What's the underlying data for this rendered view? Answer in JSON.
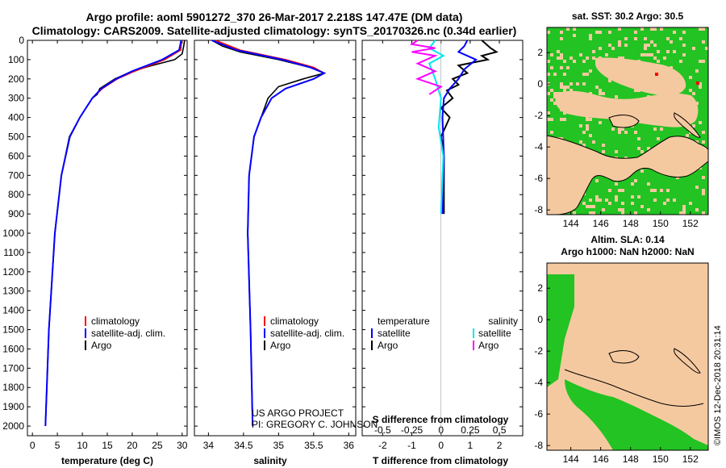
{
  "header": {
    "line1": "Argo profile: aoml 5901272_370 26-Mar-2017 2.218S 147.47E (DM data)",
    "line2": "Climatology: CARS2009. Satellite-adjusted climatology: synTS_20170326.nc (0.34d earlier)"
  },
  "map_sst": {
    "title": "sat. SST: 30.2 Argo: 30.5",
    "xticks": [
      "144",
      "146",
      "148",
      "150",
      "152"
    ],
    "yticks": [
      "2",
      "0",
      "-2",
      "-4",
      "-6",
      "-8"
    ]
  },
  "map_sla": {
    "title1": "Altim. SLA: 0.14",
    "title2": "Argo h1000: NaN h2000: NaN",
    "xticks": [
      "144",
      "146",
      "148",
      "150",
      "152"
    ],
    "yticks": [
      "2",
      "0",
      "-2",
      "-4",
      "-6",
      "-8"
    ]
  },
  "credits": {
    "project": "US ARGO PROJECT",
    "pi": "PI: GREGORY C. JOHNSON",
    "stamp": "©IMOS 12-Dec-2018 20:31:14"
  },
  "colors": {
    "climatology": "#ff0000",
    "satellite": "#0000ff",
    "argo": "#000000",
    "sat_salinity": "#00e5ee",
    "argo_salinity": "#ff00ff",
    "land": "#f5c9a0",
    "ocean_green": "#22c322"
  },
  "chart_data": [
    {
      "type": "line",
      "title": "",
      "xlabel": "temperature (deg C)",
      "ylabel": "",
      "xlim": [
        -1,
        31
      ],
      "ylim": [
        2050,
        0
      ],
      "xticks": [
        "0",
        "5",
        "10",
        "15",
        "20",
        "25",
        "30"
      ],
      "yticks": [
        "0",
        "100",
        "200",
        "300",
        "400",
        "500",
        "600",
        "700",
        "800",
        "900",
        "1000",
        "1100",
        "1200",
        "1300",
        "1400",
        "1500",
        "1600",
        "1700",
        "1800",
        "1900",
        "2000"
      ],
      "legend": [
        "climatology",
        "satellite-adj. clim.",
        "Argo"
      ],
      "series": [
        {
          "name": "climatology",
          "depth": [
            0,
            50,
            100,
            130,
            160,
            200,
            250,
            300,
            400,
            500,
            700,
            1000,
            1500,
            2000
          ],
          "values": [
            29.9,
            29.7,
            26.5,
            23.5,
            20.5,
            17.0,
            14.0,
            12.0,
            9.5,
            7.5,
            5.8,
            4.5,
            3.3,
            2.6
          ]
        },
        {
          "name": "satellite-adj. clim.",
          "depth": [
            0,
            50,
            100,
            130,
            160,
            200,
            250,
            300,
            400,
            500,
            700,
            1000,
            1500,
            2000
          ],
          "values": [
            29.8,
            29.4,
            26.0,
            23.0,
            20.0,
            16.8,
            13.8,
            12.0,
            9.5,
            7.5,
            5.8,
            4.5,
            3.3,
            2.6
          ]
        },
        {
          "name": "Argo",
          "depth": [
            0,
            30,
            70,
            100,
            130,
            160,
            200,
            250,
            280,
            300,
            400,
            500,
            700,
            1000,
            1500,
            2000
          ],
          "values": [
            30.5,
            30.3,
            30.0,
            28.5,
            24.0,
            20.0,
            16.5,
            13.5,
            13.0,
            12.0,
            9.5,
            7.4,
            5.8,
            4.5,
            3.3,
            2.6
          ]
        }
      ]
    },
    {
      "type": "line",
      "title": "",
      "xlabel": "salinity",
      "ylabel": "",
      "xlim": [
        33.8,
        36.1
      ],
      "ylim": [
        2050,
        0
      ],
      "xticks": [
        "34",
        "34.5",
        "35",
        "35.5",
        "36"
      ],
      "legend": [
        "climatology",
        "satellite-adj. clim.",
        "Argo"
      ],
      "series": [
        {
          "name": "climatology",
          "depth": [
            0,
            50,
            100,
            140,
            170,
            200,
            250,
            300,
            400,
            500,
            700,
            1000,
            1500,
            2000
          ],
          "values": [
            34.1,
            34.45,
            35.1,
            35.5,
            35.65,
            35.5,
            35.1,
            34.9,
            34.75,
            34.65,
            34.58,
            34.56,
            34.6,
            34.63
          ]
        },
        {
          "name": "satellite-adj. clim.",
          "depth": [
            0,
            50,
            100,
            140,
            170,
            200,
            250,
            300,
            400,
            500,
            700,
            1000,
            1500,
            2000
          ],
          "values": [
            34.05,
            34.4,
            35.05,
            35.45,
            35.65,
            35.5,
            35.1,
            34.9,
            34.75,
            34.65,
            34.58,
            34.56,
            34.6,
            34.63
          ]
        },
        {
          "name": "Argo",
          "depth": [
            0,
            30,
            60,
            100,
            140,
            170,
            200,
            240,
            280,
            300,
            400,
            500,
            700,
            1000,
            1500,
            2000
          ],
          "values": [
            34.05,
            34.2,
            34.45,
            35.0,
            35.45,
            35.65,
            35.35,
            35.0,
            34.9,
            34.85,
            34.75,
            34.65,
            34.58,
            34.56,
            34.6,
            34.63
          ]
        }
      ]
    },
    {
      "type": "line",
      "title": "",
      "xlabel": "T difference from climatology",
      "x2label": "S difference from climatology",
      "ylabel": "",
      "xlim": [
        -2.7,
        2.8
      ],
      "ylim": [
        2050,
        0
      ],
      "xticks": [
        "-2",
        "-1",
        "0",
        "1",
        "2"
      ],
      "x2ticks": [
        "-0.5",
        "-0.25",
        "0",
        "0.25",
        "0.5"
      ],
      "legend": [
        "temperature",
        "satellite",
        "Argo",
        "salinity",
        "satellite",
        "Argo"
      ],
      "series": [
        {
          "name": "temperature satellite",
          "depth": [
            0,
            30,
            60,
            100,
            150,
            200,
            250,
            300,
            400,
            600,
            900
          ],
          "values": [
            0.9,
            0.8,
            0.6,
            1.2,
            0.8,
            0.6,
            0.3,
            0.1,
            0.05,
            0.1,
            0.05
          ]
        },
        {
          "name": "temperature Argo",
          "depth": [
            0,
            40,
            60,
            80,
            100,
            130,
            170,
            200,
            230,
            260,
            300,
            350,
            400,
            500,
            600,
            900
          ],
          "values": [
            1.4,
            1.7,
            1.9,
            1.4,
            1.6,
            0.6,
            0.9,
            0.4,
            0.6,
            0.2,
            0.4,
            0.0,
            0.3,
            0.0,
            0.1,
            0.1
          ]
        },
        {
          "name": "salinity satellite",
          "depth": [
            0,
            40,
            80,
            120,
            200,
            300,
            450,
            600,
            900
          ],
          "values": [
            -0.05,
            -0.1,
            0.02,
            -0.1,
            -0.05,
            0.0,
            -0.02,
            0.02,
            0.0
          ]
        },
        {
          "name": "salinity Argo",
          "depth": [
            0,
            20,
            40,
            60,
            80,
            120,
            160,
            200,
            240,
            280
          ],
          "values": [
            -0.2,
            -0.25,
            -0.05,
            -0.25,
            -0.05,
            -0.2,
            -0.05,
            -0.2,
            0.0,
            -0.1
          ]
        }
      ]
    }
  ]
}
